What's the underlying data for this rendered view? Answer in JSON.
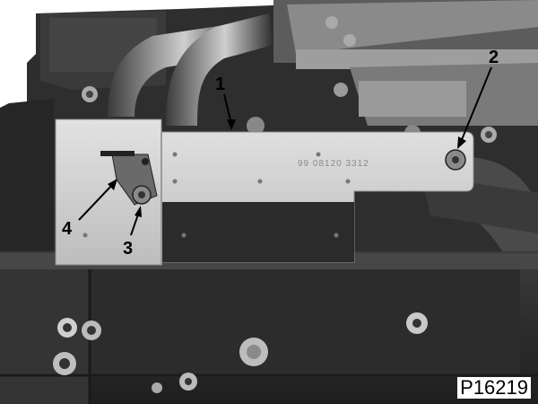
{
  "callouts": {
    "c1": "1",
    "c2": "2",
    "c3": "3",
    "c4": "4"
  },
  "plate_marking": "99 08120 3312",
  "figure_code": "P16219",
  "colors": {
    "engine_dark": "#2a2a2a",
    "plate_light": "#d4d4d4",
    "arrow": "#000000"
  }
}
